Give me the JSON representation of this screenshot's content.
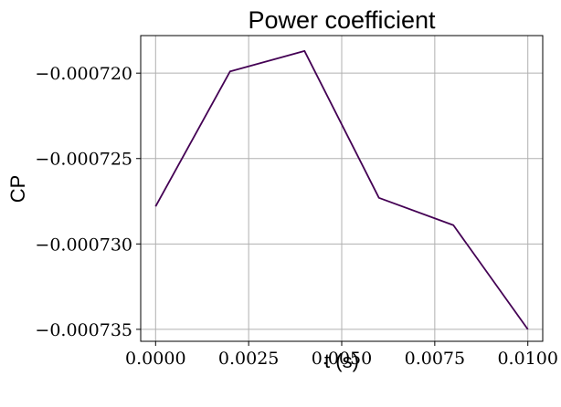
{
  "chart_data": {
    "type": "line",
    "title": "Power coefficient",
    "xlabel": "t (s)",
    "ylabel": "CP",
    "xlim": [
      -0.0004,
      0.0104
    ],
    "ylim": [
      -0.0007357,
      -0.0007178
    ],
    "grid": true,
    "x_ticks": [
      0.0,
      0.0025,
      0.005,
      0.0075,
      0.01
    ],
    "x_tick_labels": [
      "0.0000",
      "0.0025",
      "0.0050",
      "0.0075",
      "0.0100"
    ],
    "y_ticks": [
      -0.00072,
      -0.000725,
      -0.00073,
      -0.000735
    ],
    "y_tick_labels": [
      "−0.000720",
      "−0.000725",
      "−0.000730",
      "−0.000735"
    ],
    "series": [
      {
        "color": "#440154",
        "x": [
          0.0,
          0.002,
          0.004,
          0.006,
          0.008,
          0.01
        ],
        "y": [
          -0.0007278,
          -0.0007199,
          -0.0007187,
          -0.0007273,
          -0.0007289,
          -0.000735
        ]
      }
    ]
  }
}
